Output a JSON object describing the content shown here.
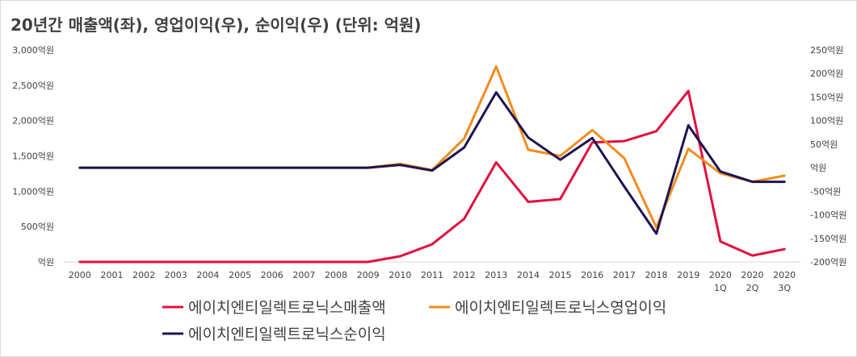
{
  "title": "20년간 매출액(좌), 영업이익(우), 순이익(우) (단위: 억원)",
  "chart_data": {
    "type": "line",
    "title": "20년간 매출액(좌), 영업이익(우), 순이익(우) (단위: 억원)",
    "categories": [
      "2000",
      "2001",
      "2002",
      "2003",
      "2004",
      "2005",
      "2006",
      "2007",
      "2008",
      "2009",
      "2010",
      "2011",
      "2012",
      "2013",
      "2014",
      "2015",
      "2016",
      "2017",
      "2018",
      "2019",
      "2020\n1Q",
      "2020\n2Q",
      "2020\n3Q"
    ],
    "y_left": {
      "ticks": [
        "억원",
        "500억원",
        "1,000억원",
        "1,500억원",
        "2,000억원",
        "2,500억원",
        "3,000억원"
      ],
      "ylim": [
        0,
        3000
      ]
    },
    "y_right": {
      "ticks": [
        "-200억원",
        "-150억원",
        "-100억원",
        "-50억원",
        "억원",
        "50억원",
        "100억원",
        "150억원",
        "200억원",
        "250억원"
      ],
      "ylim": [
        -200,
        250
      ]
    },
    "grid": false,
    "legend_position": "bottom",
    "series": [
      {
        "name": "에이치엔티일렉트로닉스매출액",
        "axis": "left",
        "color": "#e0103f",
        "values": [
          0,
          0,
          0,
          0,
          0,
          0,
          0,
          0,
          0,
          0,
          80,
          250,
          610,
          1410,
          850,
          890,
          1690,
          1710,
          1850,
          2420,
          290,
          90,
          180
        ]
      },
      {
        "name": "에이치엔티일렉트로닉스영업이익",
        "axis": "right",
        "color": "#f28c1e",
        "values": [
          0,
          0,
          0,
          0,
          0,
          0,
          0,
          0,
          0,
          0,
          8,
          -5,
          62,
          215,
          38,
          25,
          80,
          20,
          -127,
          40,
          -12,
          -30,
          -17
        ]
      },
      {
        "name": "에이치엔티일렉트로닉스순이익",
        "axis": "right",
        "color": "#1e1450",
        "values": [
          0,
          0,
          0,
          0,
          0,
          0,
          0,
          0,
          0,
          0,
          6,
          -6,
          43,
          160,
          64,
          17,
          63,
          -40,
          -140,
          90,
          -8,
          -30,
          -30
        ]
      }
    ]
  }
}
